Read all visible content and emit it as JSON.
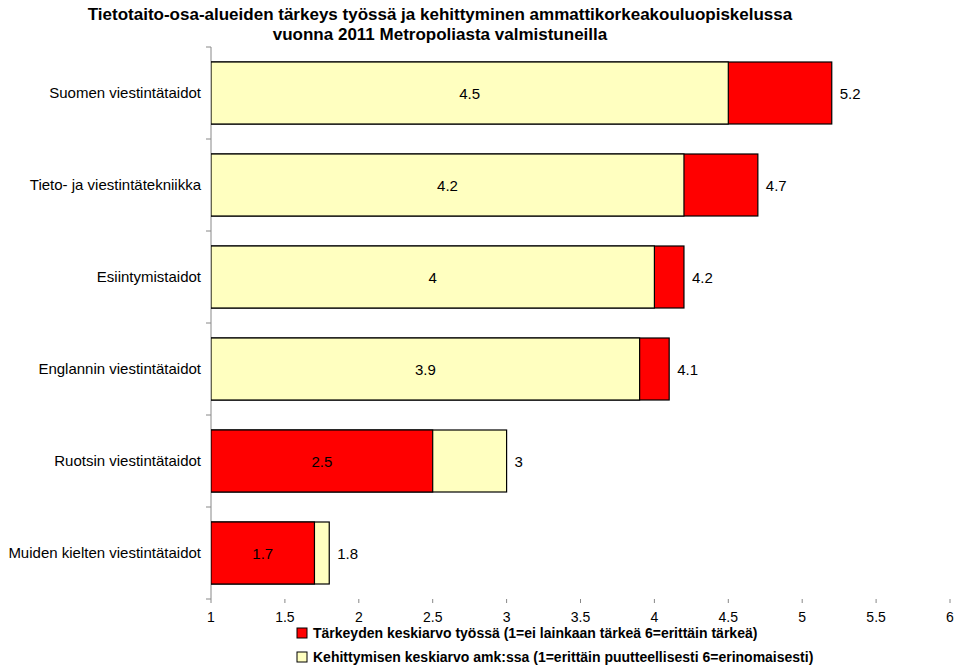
{
  "chart_data": {
    "type": "bar",
    "orientation": "horizontal",
    "title": [
      "Tietotaito-osa-alueiden tärkeys työssä ja kehittyminen ammattikorkeakouluopiskelussa",
      "vuonna 2011 Metropoliasta valmistuneilla"
    ],
    "categories": [
      "Suomen viestintätaidot",
      "Tieto- ja viestintätekniikka",
      "Esiintymistaidot",
      "Englannin viestintätaidot",
      "Ruotsin viestintätaidot",
      "Muiden kielten viestintätaidot"
    ],
    "series": [
      {
        "name": "Tärkeyden keskiarvo työssä (1=ei lainkaan tärkeä 6=erittäin tärkeä)",
        "color": "#ff0000",
        "values": [
          5.2,
          4.7,
          4.2,
          4.1,
          2.5,
          1.7
        ]
      },
      {
        "name": "Kehittymisen keskiarvo amk:ssa (1=erittäin puutteellisesti 6=erinomaisesti)",
        "color": "#ffffc0",
        "values": [
          4.5,
          4.2,
          4.0,
          3.9,
          3.0,
          1.8
        ]
      }
    ],
    "xlim": [
      1,
      6
    ],
    "xticks": [
      1,
      1.5,
      2,
      2.5,
      3,
      3.5,
      4,
      4.5,
      5,
      5.5,
      6
    ],
    "data_labels": true,
    "grid": false,
    "legend": "bottom"
  }
}
